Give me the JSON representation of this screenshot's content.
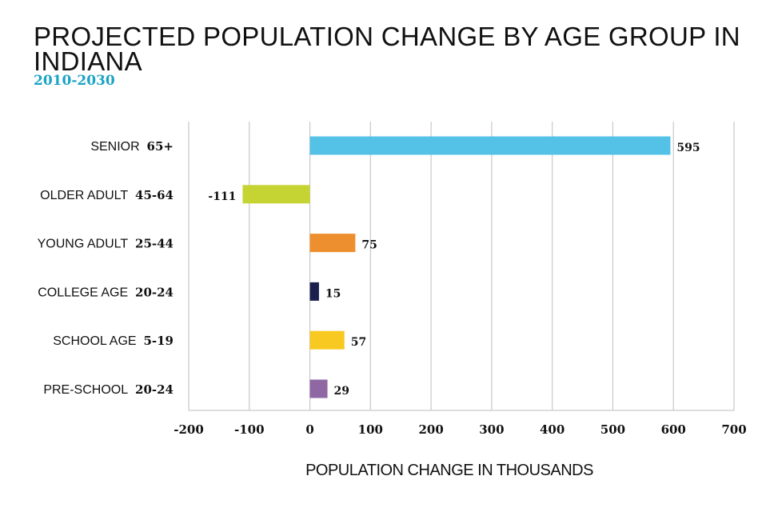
{
  "chart_data": {
    "type": "bar",
    "orientation": "horizontal",
    "title": "PROJECTED POPULATION CHANGE BY AGE GROUP IN INDIANA",
    "subtitle": "2010-2030",
    "xlabel": "POPULATION CHANGE IN THOUSANDS",
    "ylabel": "",
    "xlim": [
      -200,
      700
    ],
    "xticks": [
      -200,
      -100,
      0,
      100,
      200,
      300,
      400,
      500,
      600,
      700
    ],
    "grid": true,
    "categories": [
      "SENIOR 65+",
      "OLDER ADULT 45-64",
      "YOUNG ADULT 25-44",
      "COLLEGE AGE 20-24",
      "SCHOOL AGE 5-19",
      "PRE-SCHOOL 20-24"
    ],
    "category_names": [
      "SENIOR",
      "OLDER ADULT",
      "YOUNG ADULT",
      "COLLEGE AGE",
      "SCHOOL AGE",
      "PRE-SCHOOL"
    ],
    "category_ranges": [
      "65+",
      "45-64",
      "25-44",
      "20-24",
      "5-19",
      "20-24"
    ],
    "values": [
      595,
      -111,
      75,
      15,
      57,
      29
    ],
    "colors": [
      "#54c1e6",
      "#c6d433",
      "#ee8f2f",
      "#1b1f4d",
      "#f8c921",
      "#8f67a3"
    ]
  }
}
